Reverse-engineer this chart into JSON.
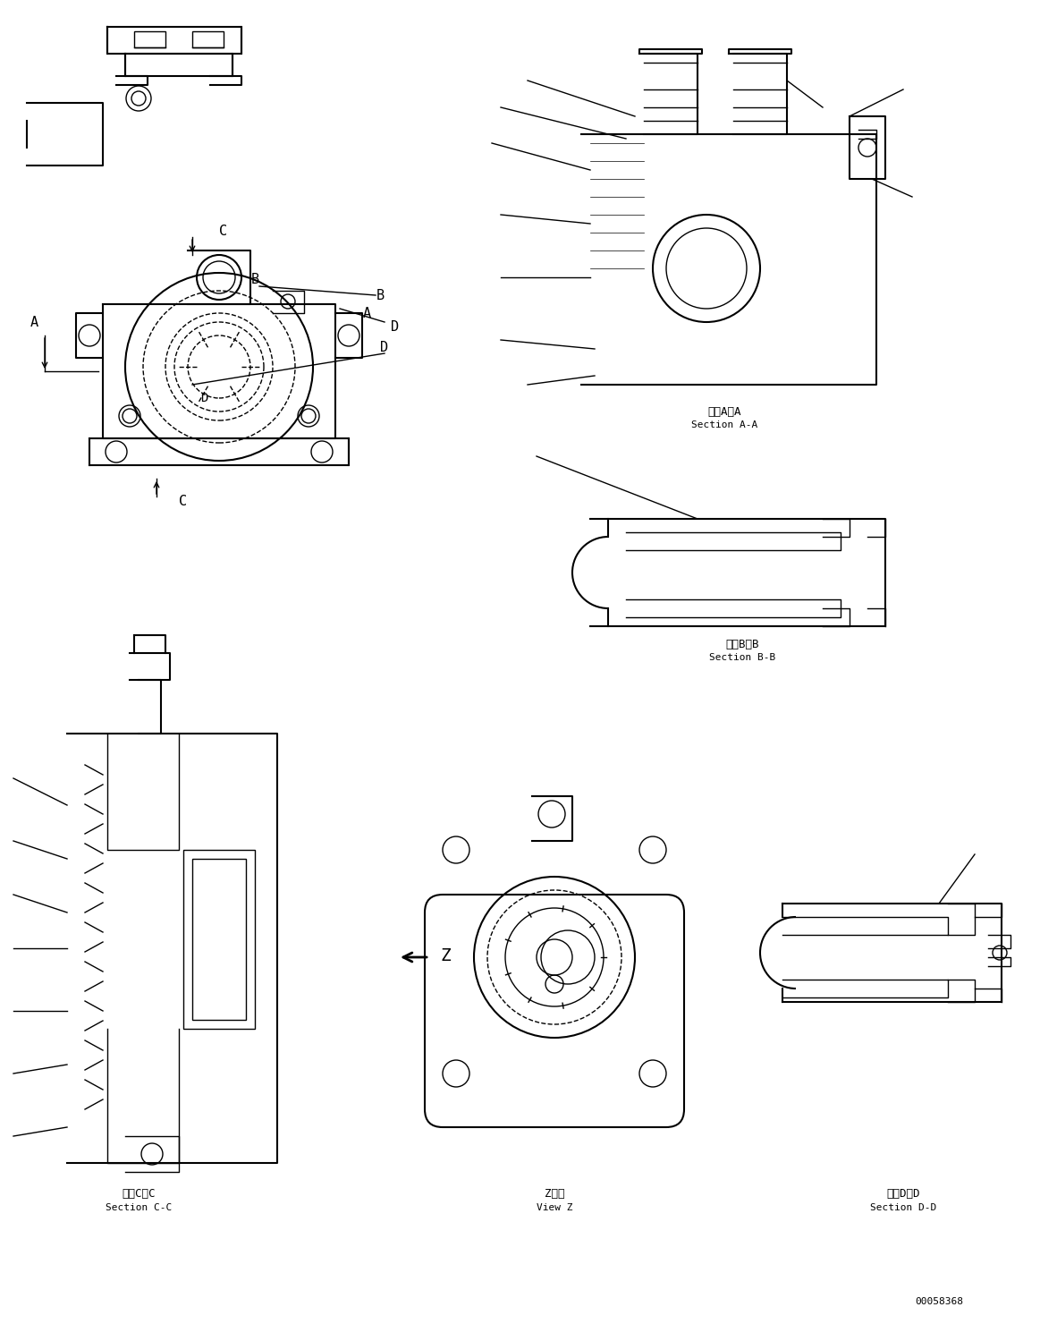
{
  "title": "",
  "background_color": "#ffffff",
  "line_color": "#000000",
  "text_color": "#000000",
  "part_number": "00058368",
  "labels": {
    "section_aa": "断面A－A\nSection A-A",
    "section_bb": "断面B－B\nSection B-B",
    "section_cc": "断面C－C\nSection C-C",
    "section_dd": "断面D－D\nSection D-D",
    "view_z": "Z　視\nView Z"
  },
  "font_size": 9,
  "title_font_size": 10
}
